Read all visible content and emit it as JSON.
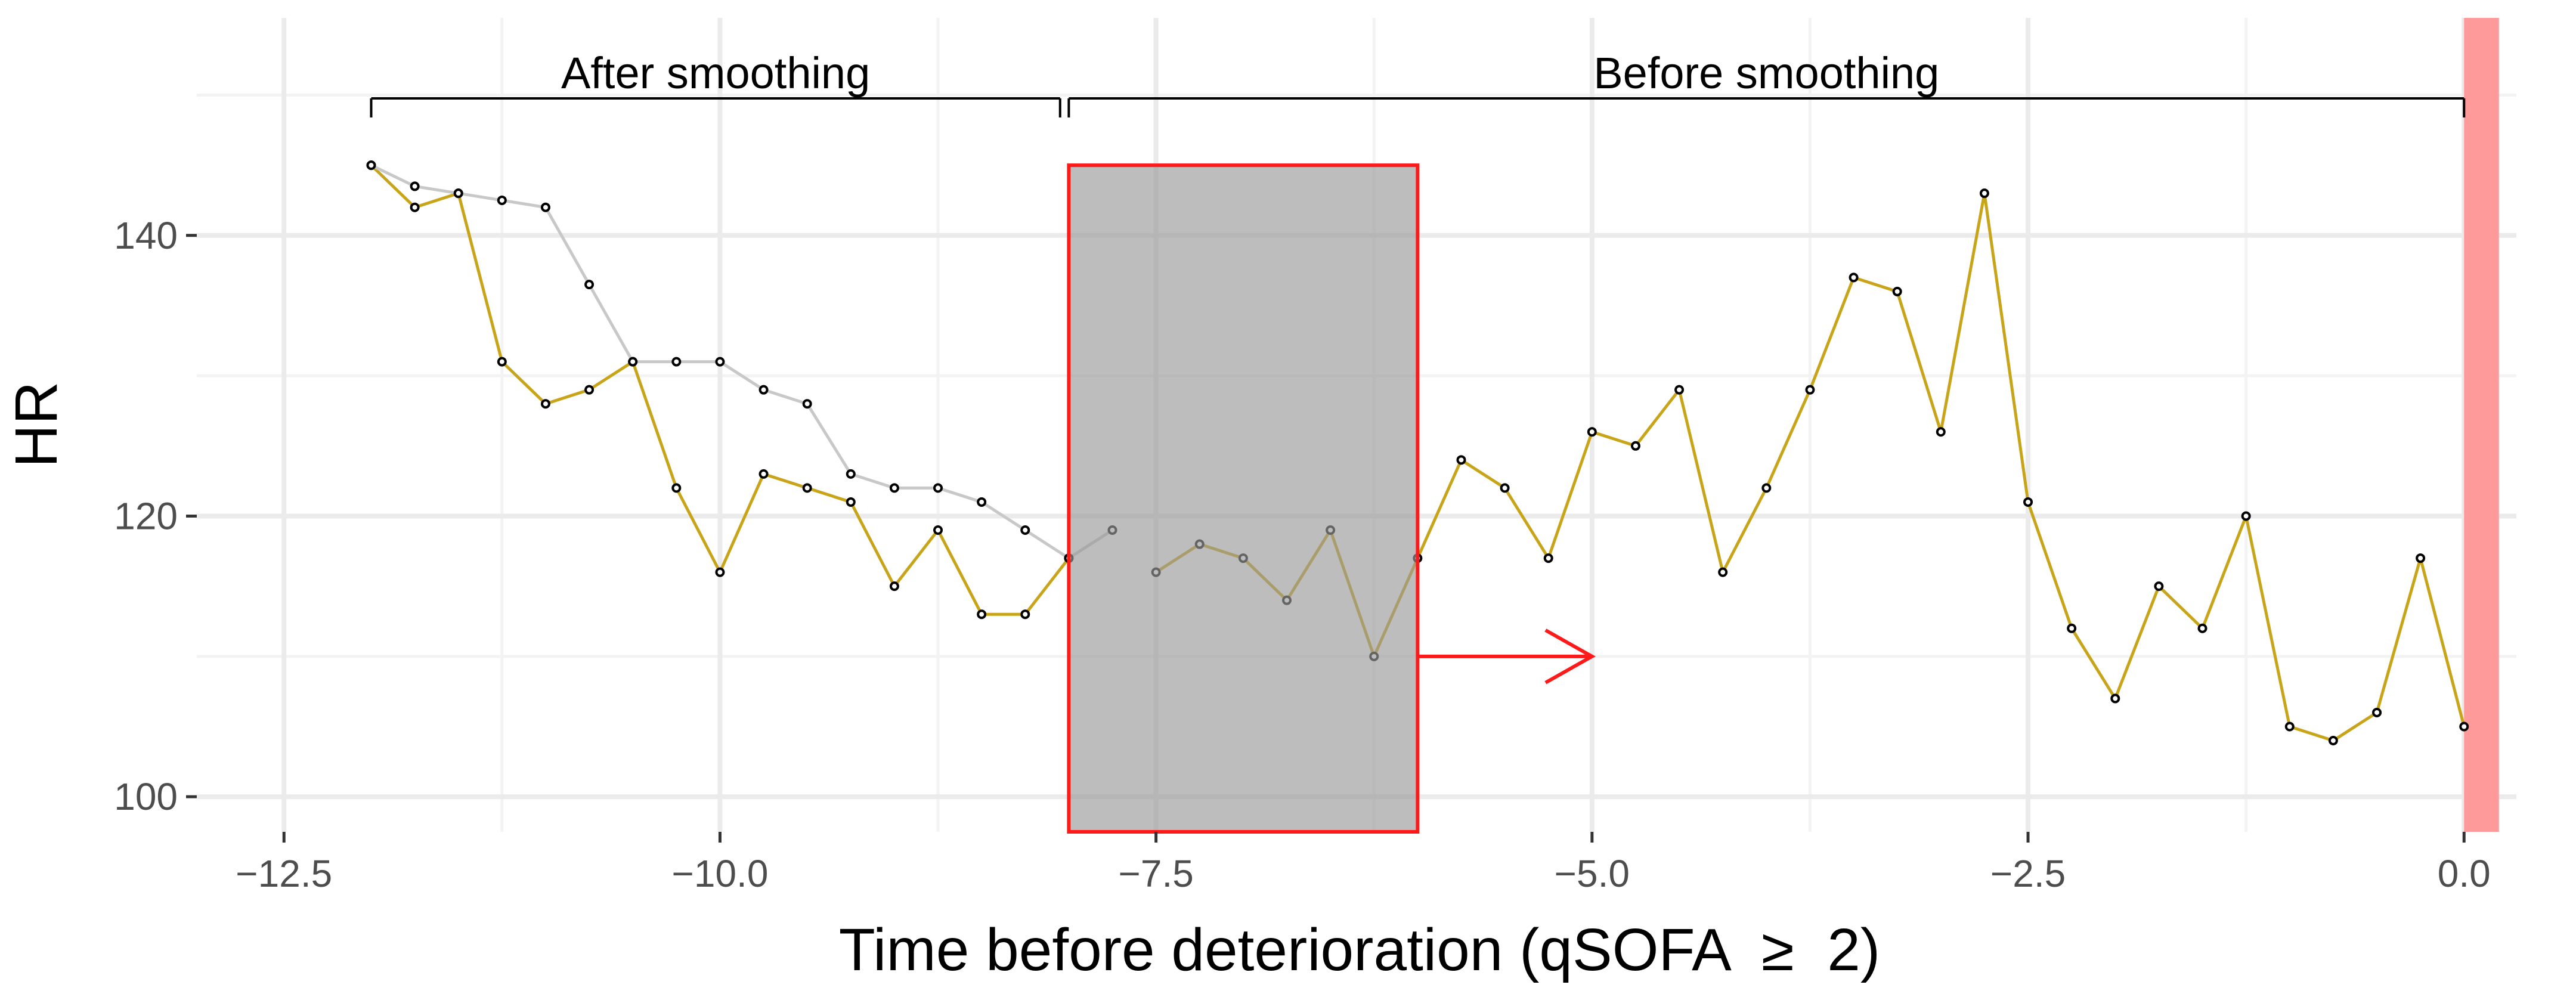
{
  "chart_data": {
    "type": "line",
    "xlabel": "Time before deterioration (qSOFA  ≥  2)",
    "ylabel": "HR",
    "xlim": [
      -13.0,
      0.3
    ],
    "ylim": [
      97.5,
      155.5
    ],
    "x_ticks": [
      -12.5,
      -10.0,
      -7.5,
      -5.0,
      -2.5,
      0.0
    ],
    "x_tick_labels": [
      "−12.5",
      "−10.0",
      "−7.5",
      "−5.0",
      "−2.5",
      "0.0"
    ],
    "y_ticks": [
      100,
      120,
      140
    ],
    "y_tick_labels": [
      "100",
      "120",
      "140"
    ],
    "x_minor_gridlines": [
      -11.25,
      -8.75,
      -6.25,
      -3.75,
      -1.25
    ],
    "y_minor_gridlines": [
      110,
      130,
      150
    ],
    "grid": true,
    "series": [
      {
        "color": "#c8a418",
        "x": [
          -12.0,
          -11.75,
          -11.5,
          -11.25,
          -11.0,
          -10.75,
          -10.5,
          -10.25,
          -10.0,
          -9.75,
          -9.5,
          -9.25,
          -9.0,
          -8.75,
          -8.5,
          -8.25,
          -8.0
        ],
        "y": [
          145,
          142,
          143,
          131,
          128,
          129,
          131,
          122,
          116,
          123,
          122,
          121,
          115,
          119,
          113,
          113,
          117
        ]
      },
      {
        "color": "#c8a418",
        "x": [
          -7.5,
          -7.25,
          -7.0,
          -6.75,
          -6.5,
          -6.25,
          -6.0,
          -5.75,
          -5.5,
          -5.25,
          -5.0,
          -4.75,
          -4.5,
          -4.25,
          -4.0,
          -3.75,
          -3.5,
          -3.25,
          -3.0,
          -2.75,
          -2.5,
          -2.25,
          -2.0,
          -1.75,
          -1.5,
          -1.25,
          -1.0,
          -0.75,
          -0.5,
          -0.25,
          0.0
        ],
        "y": [
          116,
          118,
          117,
          114,
          119,
          110,
          117,
          124,
          122,
          117,
          126,
          125,
          129,
          116,
          122,
          129,
          137,
          136,
          126,
          143,
          121,
          112,
          107,
          115,
          112,
          120,
          105,
          104,
          106,
          117,
          105
        ]
      },
      {
        "color": "#c8c8c8",
        "x": [
          -12.0,
          -11.75,
          -11.5,
          -11.25,
          -11.0,
          -10.75,
          -10.5,
          -10.25,
          -10.0,
          -9.75,
          -9.5,
          -9.25,
          -9.0,
          -8.75,
          -8.5,
          -8.25,
          -8.0,
          -7.75
        ],
        "y": [
          145,
          143.5,
          143,
          142.5,
          142,
          136.5,
          131,
          131,
          131,
          129,
          128,
          123,
          122,
          122,
          121,
          119,
          117,
          119
        ]
      }
    ],
    "shaded_window": {
      "x": [
        -8.0,
        -6.0
      ],
      "y": [
        97.5,
        145
      ]
    },
    "event_band": {
      "x": [
        0.0,
        0.2
      ],
      "color": "#ff9a9a"
    },
    "arrow": {
      "x": [
        -6.0,
        -5.0
      ],
      "y": 110
    },
    "brackets": [
      {
        "label": "After smoothing",
        "x": [
          -12.0,
          -8.05
        ]
      },
      {
        "label": "Before smoothing",
        "x": [
          -8.0,
          0.0
        ]
      }
    ]
  }
}
